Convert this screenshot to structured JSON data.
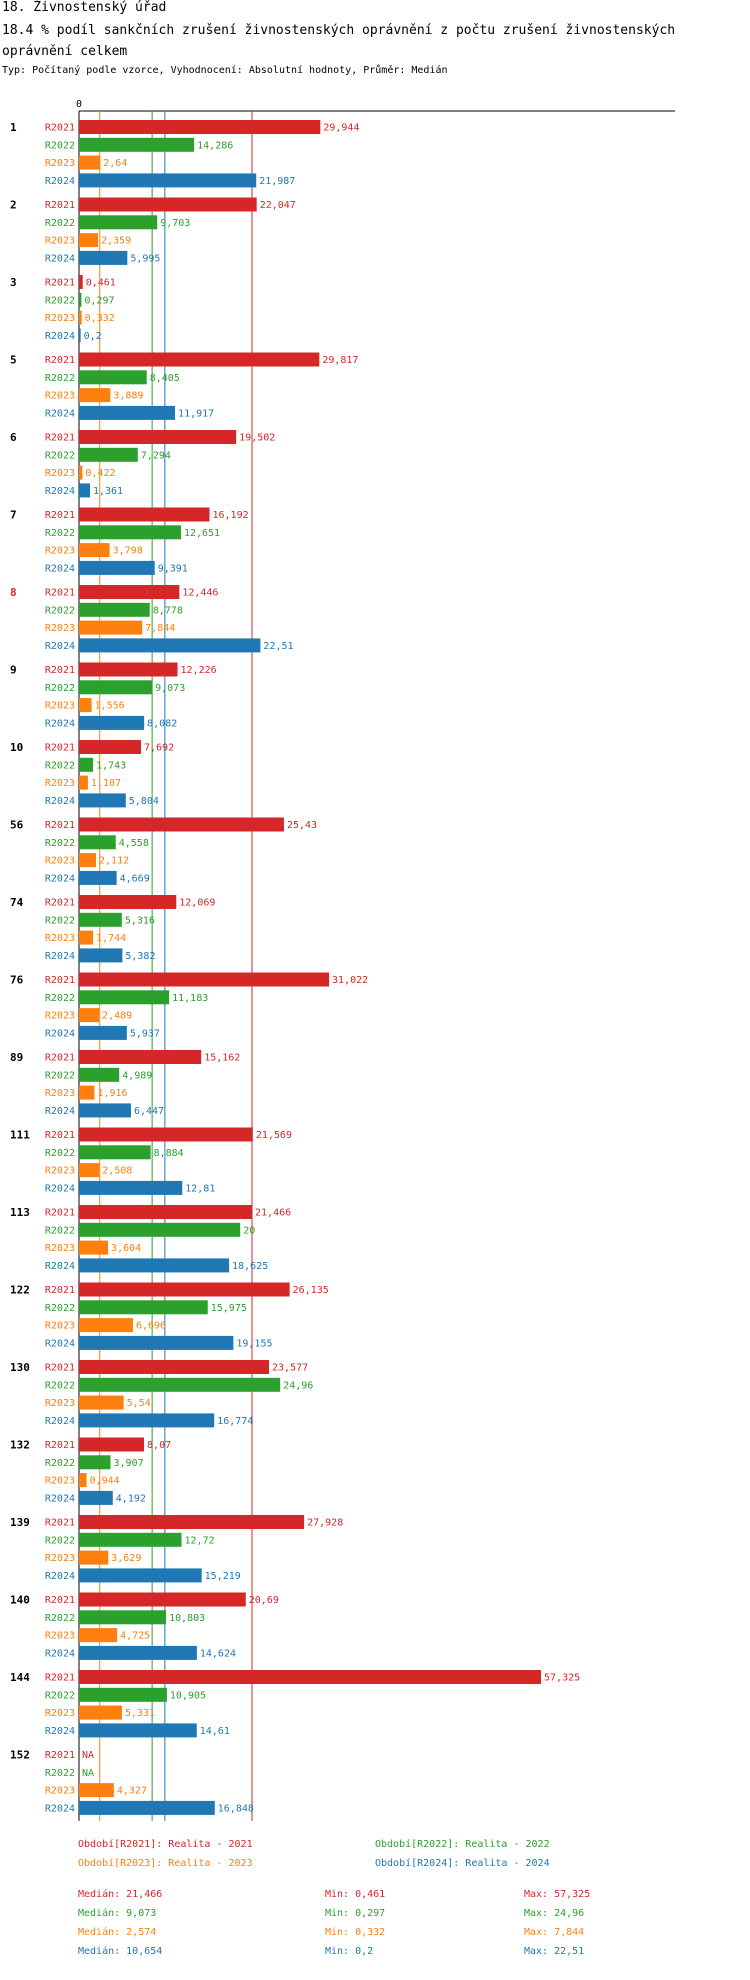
{
  "header": {
    "title": "18. Živnostenský úřad",
    "subtitle": "18.4 % podíl sankčních zrušení živnostenských oprávnění z počtu zrušení živnostenských oprávnění  celkem",
    "info": "Typ: Počítaný podle vzorce, Vyhodnocení: Absolutní hodnoty, Průměr: Medián"
  },
  "colors": {
    "R2021": "#d62728",
    "R2022": "#2ca02c",
    "R2023": "#ff7f0e",
    "R2024": "#1f77b4",
    "highlight": "#d62728"
  },
  "chart_data": {
    "type": "bar",
    "orientation": "horizontal",
    "axis_zero_label": "0",
    "highlighted_category": "8",
    "categories": [
      "1",
      "2",
      "3",
      "5",
      "6",
      "7",
      "8",
      "9",
      "10",
      "56",
      "74",
      "76",
      "89",
      "111",
      "113",
      "122",
      "130",
      "132",
      "139",
      "140",
      "144",
      "152"
    ],
    "series": [
      {
        "name": "R2021",
        "values": [
          29.944,
          22.047,
          0.461,
          29.817,
          19.502,
          16.192,
          12.446,
          12.226,
          7.692,
          25.43,
          12.069,
          31.022,
          15.162,
          21.569,
          21.466,
          26.135,
          23.577,
          8.07,
          27.928,
          20.69,
          57.325,
          null
        ],
        "labels": [
          "29,944",
          "22,047",
          "0,461",
          "29,817",
          "19,502",
          "16,192",
          "12,446",
          "12,226",
          "7,692",
          "25,43",
          "12,069",
          "31,022",
          "15,162",
          "21,569",
          "21,466",
          "26,135",
          "23,577",
          "8,07",
          "27,928",
          "20,69",
          "57,325",
          "NA"
        ]
      },
      {
        "name": "R2022",
        "values": [
          14.286,
          9.703,
          0.297,
          8.405,
          7.294,
          12.651,
          8.778,
          9.073,
          1.743,
          4.558,
          5.316,
          11.183,
          4.989,
          8.884,
          20,
          15.975,
          24.96,
          3.907,
          12.72,
          10.803,
          10.905,
          null
        ],
        "labels": [
          "14,286",
          "9,703",
          "0,297",
          "8,405",
          "7,294",
          "12,651",
          "8,778",
          "9,073",
          "1,743",
          "4,558",
          "5,316",
          "11,183",
          "4,989",
          "8,884",
          "20",
          "15,975",
          "24,96",
          "3,907",
          "12,72",
          "10,803",
          "10,905",
          "NA"
        ]
      },
      {
        "name": "R2023",
        "values": [
          2.64,
          2.359,
          0.332,
          3.889,
          0.422,
          3.798,
          7.844,
          1.556,
          1.107,
          2.112,
          1.744,
          2.489,
          1.916,
          2.508,
          3.604,
          6.696,
          5.54,
          0.944,
          3.629,
          4.725,
          5.331,
          4.327
        ],
        "labels": [
          "2,64",
          "2,359",
          "0,332",
          "3,889",
          "0,422",
          "3,798",
          "7,844",
          "1,556",
          "1,107",
          "2,112",
          "1,744",
          "2,489",
          "1,916",
          "2,508",
          "3,604",
          "6,696",
          "5,54",
          "0,944",
          "3,629",
          "4,725",
          "5,331",
          "4,327"
        ]
      },
      {
        "name": "R2024",
        "values": [
          21.987,
          5.995,
          0.2,
          11.917,
          1.361,
          9.391,
          22.51,
          8.082,
          5.804,
          4.669,
          5.382,
          5.937,
          6.447,
          12.81,
          18.625,
          19.155,
          16.774,
          4.192,
          15.219,
          14.624,
          14.61,
          16.848
        ],
        "labels": [
          "21,987",
          "5,995",
          "0,2",
          "11,917",
          "1,361",
          "9,391",
          "22,51",
          "8,082",
          "5,804",
          "4,669",
          "5,382",
          "5,937",
          "6,447",
          "12,81",
          "18,625",
          "19,155",
          "16,774",
          "4,192",
          "15,219",
          "14,624",
          "14,61",
          "16,848"
        ]
      }
    ],
    "medians": {
      "R2021": 21.466,
      "R2022": 9.073,
      "R2023": 2.574,
      "R2024": 10.654
    },
    "xlim": [
      0,
      60
    ]
  },
  "legend": [
    {
      "text": "Období[R2021]: Realita - 2021"
    },
    {
      "text": "Období[R2022]: Realita - 2022"
    },
    {
      "text": "Období[R2023]: Realita - 2023"
    },
    {
      "text": "Období[R2024]: Realita - 2024"
    }
  ],
  "stats": [
    {
      "median": "Medián: 21,466",
      "min": "Min: 0,461",
      "max": "Max: 57,325"
    },
    {
      "median": "Medián: 9,073",
      "min": "Min: 0,297",
      "max": "Max: 24,96"
    },
    {
      "median": "Medián: 2,574",
      "min": "Min: 0,332",
      "max": "Max: 7,844"
    },
    {
      "median": "Medián: 10,654",
      "min": "Min: 0,2",
      "max": "Max: 22,51"
    }
  ]
}
